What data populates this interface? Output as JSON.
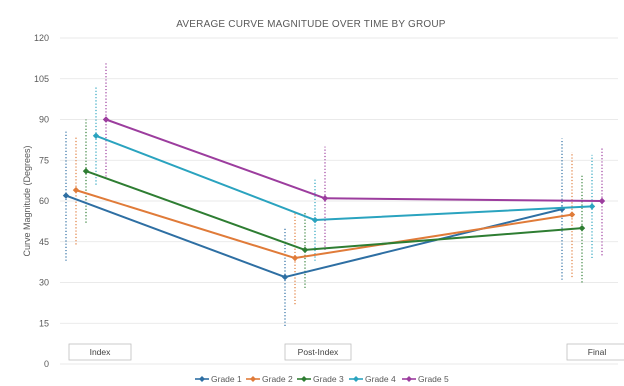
{
  "chart_data": {
    "type": "line",
    "title": "AVERAGE CURVE MAGNITUDE OVER TIME BY GROUP",
    "xlabel": "",
    "ylabel": "Curve Magnitude (Degrees)",
    "categories": [
      "Index",
      "Post-Index",
      "Final"
    ],
    "ylim": [
      0,
      120
    ],
    "yticks": [
      "0",
      "15",
      "30",
      "45",
      "60",
      "75",
      "90",
      "105",
      "120"
    ],
    "grid": true,
    "legend": "bottom",
    "error_bars": true,
    "series": [
      {
        "name": "Grade 1",
        "color": "#2e6fa3",
        "values": [
          62,
          32,
          57
        ],
        "errors_low": [
          38,
          14,
          31
        ],
        "errors_high": [
          86,
          50,
          83
        ]
      },
      {
        "name": "Grade 2",
        "color": "#e07b39",
        "values": [
          64,
          39,
          55
        ],
        "errors_low": [
          44,
          22,
          32
        ],
        "errors_high": [
          84,
          56,
          78
        ]
      },
      {
        "name": "Grade 3",
        "color": "#2e7d32",
        "values": [
          71,
          42,
          50
        ],
        "errors_low": [
          52,
          28,
          30
        ],
        "errors_high": [
          90,
          56,
          70
        ]
      },
      {
        "name": "Grade 4",
        "color": "#2aa3bf",
        "values": [
          84,
          53,
          58
        ],
        "errors_low": [
          66,
          38,
          39
        ],
        "errors_high": [
          102,
          68,
          77
        ]
      },
      {
        "name": "Grade 5",
        "color": "#9c3d9e",
        "values": [
          90,
          61,
          60
        ],
        "errors_low": [
          69,
          42,
          40
        ],
        "errors_high": [
          111,
          80,
          80
        ]
      }
    ]
  }
}
